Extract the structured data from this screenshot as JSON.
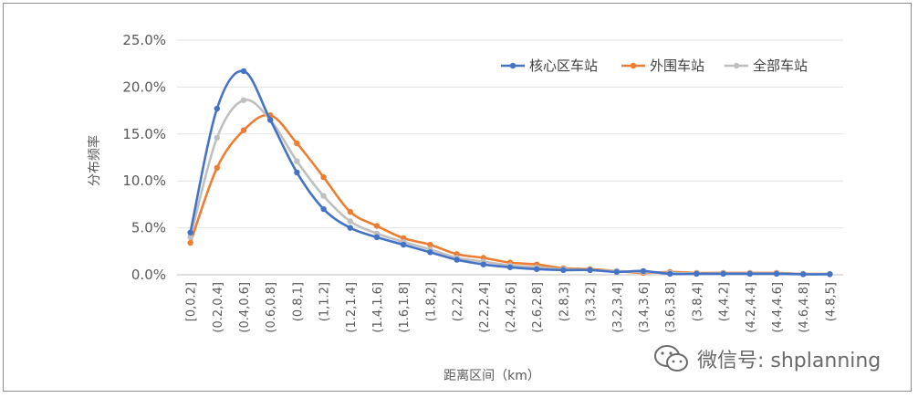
{
  "watermark": {
    "text": "微信号: shplanning",
    "icon": "wechat-icon"
  },
  "chart_data": {
    "type": "line",
    "title": "",
    "xlabel": "距离区间（km）",
    "ylabel": "分布频率",
    "ylim": [
      0,
      25
    ],
    "yticks": [
      "0.0%",
      "5.0%",
      "10.0%",
      "15.0%",
      "20.0%",
      "25.0%"
    ],
    "grid": true,
    "legend_position": "top-right",
    "categories": [
      "[0,0.2]",
      "(0.2,0.4]",
      "(0.4,0.6]",
      "(0.6,0.8]",
      "(0.8,1]",
      "(1,1.2]",
      "(1.2,1.4]",
      "(1.4,1.6]",
      "(1.6,1.8]",
      "(1.8,2]",
      "(2,2.2]",
      "(2.2,2.4]",
      "(2.4,2.6]",
      "(2.6,2.8]",
      "(2.8,3]",
      "(3,3.2]",
      "(3.2,3.4]",
      "(3.4,3.6]",
      "(3.6,3.8]",
      "(3.8,4]",
      "(4,4.2]",
      "(4.2,4.4]",
      "(4.4,4.6]",
      "(4.6,4.8]",
      "(4.8,5]"
    ],
    "series": [
      {
        "name": "核心区车站",
        "color": "#4472C4",
        "values": [
          4.5,
          17.7,
          21.7,
          16.5,
          10.9,
          7.0,
          5.0,
          4.0,
          3.2,
          2.4,
          1.6,
          1.1,
          0.8,
          0.6,
          0.5,
          0.5,
          0.3,
          0.4,
          0.1,
          0.1,
          0.1,
          0.1,
          0.1,
          0.05,
          0.05
        ]
      },
      {
        "name": "外围车站",
        "color": "#ED7D31",
        "values": [
          3.4,
          11.4,
          15.4,
          17.0,
          14.0,
          10.4,
          6.7,
          5.2,
          3.9,
          3.2,
          2.2,
          1.8,
          1.3,
          1.1,
          0.7,
          0.6,
          0.4,
          0.2,
          0.3,
          0.2,
          0.2,
          0.2,
          0.2,
          0.1,
          0.1
        ]
      },
      {
        "name": "全部车站",
        "color": "#BFBFBF",
        "values": [
          4.0,
          14.6,
          18.6,
          16.5,
          12.1,
          8.4,
          5.7,
          4.4,
          3.5,
          2.7,
          1.8,
          1.4,
          1.0,
          0.8,
          0.6,
          0.5,
          0.4,
          0.3,
          0.2,
          0.15,
          0.15,
          0.15,
          0.15,
          0.1,
          0.1
        ]
      }
    ]
  }
}
